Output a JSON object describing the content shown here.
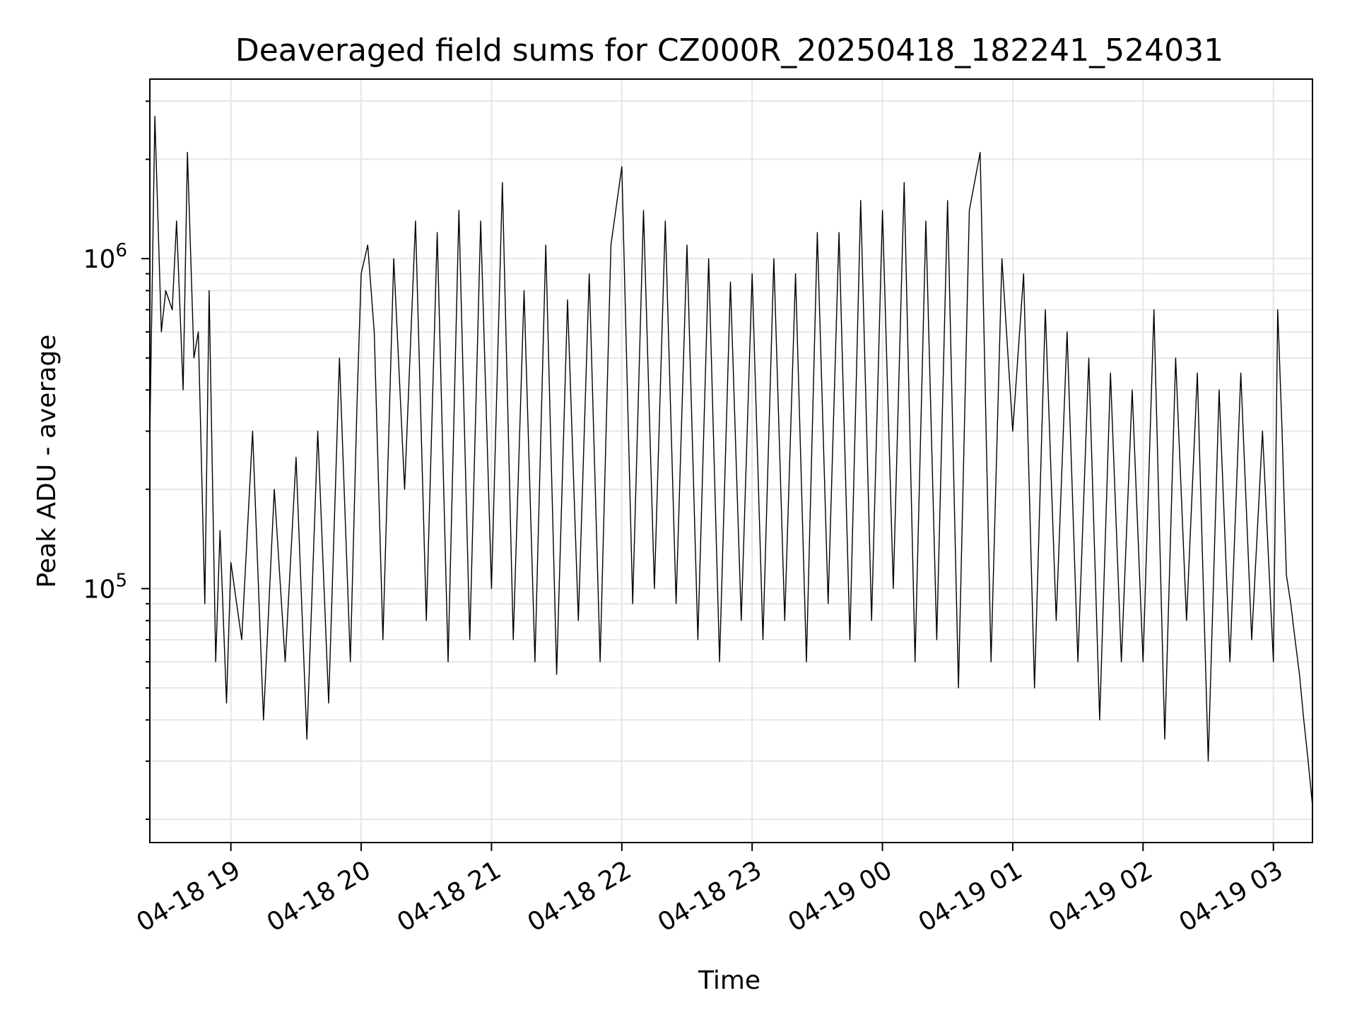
{
  "chart_data": {
    "type": "line",
    "title": "Deaveraged field sums for CZ000R_20250418_182241_524031",
    "xlabel": "Time",
    "ylabel": "Peak ADU - average",
    "xlim": [
      "2025-04-18T18:22:41",
      "2025-04-19T03:18:00"
    ],
    "ylim": [
      17000,
      3500000
    ],
    "yscale": "log",
    "grid": true,
    "line_color": "#000000",
    "x_tick_labels": [
      "04-18 19",
      "04-18 20",
      "04-18 21",
      "04-18 22",
      "04-18 23",
      "04-19 00",
      "04-19 01",
      "04-19 02",
      "04-19 03"
    ],
    "y_tick_labels": [
      {
        "base": "10",
        "exp": "5",
        "value": 100000
      },
      {
        "base": "10",
        "exp": "6",
        "value": 1000000
      }
    ],
    "series": [
      {
        "x": [
          "2025-04-18T18:22:41",
          "2025-04-18T18:25",
          "2025-04-18T18:28",
          "2025-04-18T18:30",
          "2025-04-18T18:33",
          "2025-04-18T18:35",
          "2025-04-18T18:38",
          "2025-04-18T18:40",
          "2025-04-18T18:43",
          "2025-04-18T18:45",
          "2025-04-18T18:48",
          "2025-04-18T18:50",
          "2025-04-18T18:53",
          "2025-04-18T18:55",
          "2025-04-18T18:58",
          "2025-04-18T19:00",
          "2025-04-18T19:05",
          "2025-04-18T19:10",
          "2025-04-18T19:15",
          "2025-04-18T19:20",
          "2025-04-18T19:25",
          "2025-04-18T19:30",
          "2025-04-18T19:35",
          "2025-04-18T19:40",
          "2025-04-18T19:45",
          "2025-04-18T19:50",
          "2025-04-18T19:55",
          "2025-04-18T19:58",
          "2025-04-18T20:00",
          "2025-04-18T20:03",
          "2025-04-18T20:06",
          "2025-04-18T20:10",
          "2025-04-18T20:15",
          "2025-04-18T20:20",
          "2025-04-18T20:25",
          "2025-04-18T20:30",
          "2025-04-18T20:35",
          "2025-04-18T20:40",
          "2025-04-18T20:45",
          "2025-04-18T20:50",
          "2025-04-18T20:55",
          "2025-04-18T21:00",
          "2025-04-18T21:05",
          "2025-04-18T21:10",
          "2025-04-18T21:15",
          "2025-04-18T21:20",
          "2025-04-18T21:25",
          "2025-04-18T21:30",
          "2025-04-18T21:35",
          "2025-04-18T21:40",
          "2025-04-18T21:45",
          "2025-04-18T21:50",
          "2025-04-18T21:55",
          "2025-04-18T22:00",
          "2025-04-18T22:05",
          "2025-04-18T22:10",
          "2025-04-18T22:15",
          "2025-04-18T22:20",
          "2025-04-18T22:25",
          "2025-04-18T22:30",
          "2025-04-18T22:35",
          "2025-04-18T22:40",
          "2025-04-18T22:45",
          "2025-04-18T22:50",
          "2025-04-18T22:55",
          "2025-04-18T23:00",
          "2025-04-18T23:05",
          "2025-04-18T23:10",
          "2025-04-18T23:15",
          "2025-04-18T23:20",
          "2025-04-18T23:25",
          "2025-04-18T23:30",
          "2025-04-18T23:35",
          "2025-04-18T23:40",
          "2025-04-18T23:45",
          "2025-04-18T23:50",
          "2025-04-18T23:55",
          "2025-04-19T00:00",
          "2025-04-19T00:05",
          "2025-04-19T00:10",
          "2025-04-19T00:15",
          "2025-04-19T00:20",
          "2025-04-19T00:25",
          "2025-04-19T00:30",
          "2025-04-19T00:35",
          "2025-04-19T00:40",
          "2025-04-19T00:45",
          "2025-04-19T00:50",
          "2025-04-19T00:55",
          "2025-04-19T01:00",
          "2025-04-19T01:05",
          "2025-04-19T01:10",
          "2025-04-19T01:15",
          "2025-04-19T01:20",
          "2025-04-19T01:25",
          "2025-04-19T01:30",
          "2025-04-19T01:35",
          "2025-04-19T01:40",
          "2025-04-19T01:45",
          "2025-04-19T01:50",
          "2025-04-19T01:55",
          "2025-04-19T02:00",
          "2025-04-19T02:05",
          "2025-04-19T02:10",
          "2025-04-19T02:15",
          "2025-04-19T02:20",
          "2025-04-19T02:25",
          "2025-04-19T02:30",
          "2025-04-19T02:35",
          "2025-04-19T02:40",
          "2025-04-19T02:45",
          "2025-04-19T02:50",
          "2025-04-19T02:55",
          "2025-04-19T03:00",
          "2025-04-19T03:02",
          "2025-04-19T03:04",
          "2025-04-19T03:06",
          "2025-04-19T03:08",
          "2025-04-19T03:10",
          "2025-04-19T03:12",
          "2025-04-19T03:14",
          "2025-04-19T03:16",
          "2025-04-19T03:18"
        ],
        "y": [
          290000,
          2700000,
          600000,
          800000,
          700000,
          1300000,
          400000,
          2100000,
          500000,
          600000,
          90000,
          800000,
          60000,
          150000,
          45000,
          120000,
          70000,
          300000,
          40000,
          200000,
          60000,
          250000,
          35000,
          300000,
          45000,
          500000,
          60000,
          350000,
          900000,
          1100000,
          600000,
          70000,
          1000000,
          200000,
          1300000,
          80000,
          1200000,
          60000,
          1400000,
          70000,
          1300000,
          100000,
          1700000,
          70000,
          800000,
          60000,
          1100000,
          55000,
          750000,
          80000,
          900000,
          60000,
          1100000,
          1900000,
          90000,
          1400000,
          100000,
          1300000,
          90000,
          1100000,
          70000,
          1000000,
          60000,
          850000,
          80000,
          900000,
          70000,
          1000000,
          80000,
          900000,
          60000,
          1200000,
          90000,
          1200000,
          70000,
          1500000,
          80000,
          1400000,
          100000,
          1700000,
          60000,
          1300000,
          70000,
          1500000,
          50000,
          1400000,
          2100000,
          60000,
          1000000,
          300000,
          900000,
          50000,
          700000,
          80000,
          600000,
          60000,
          500000,
          40000,
          450000,
          60000,
          400000,
          60000,
          700000,
          35000,
          500000,
          80000,
          450000,
          30000,
          400000,
          60000,
          450000,
          70000,
          300000,
          60000,
          700000,
          300000,
          110000,
          90000,
          70000,
          55000,
          40000,
          30000,
          22000
        ]
      }
    ]
  }
}
